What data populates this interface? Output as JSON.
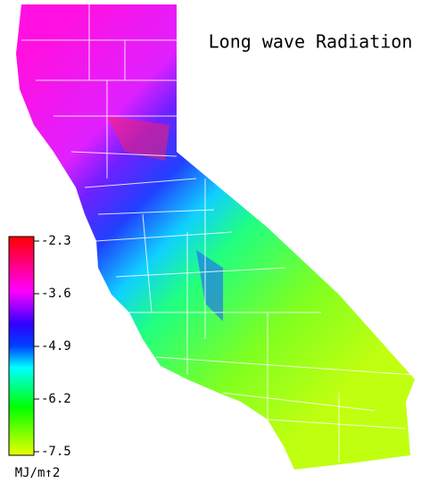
{
  "title": "Long wave Radiation",
  "legend": {
    "ticks": [
      -2.3,
      -3.6,
      -4.9,
      -6.2,
      -7.5
    ],
    "lim": [
      -7.5,
      -2.3
    ],
    "unit": "MJ/m↑2"
  }
}
